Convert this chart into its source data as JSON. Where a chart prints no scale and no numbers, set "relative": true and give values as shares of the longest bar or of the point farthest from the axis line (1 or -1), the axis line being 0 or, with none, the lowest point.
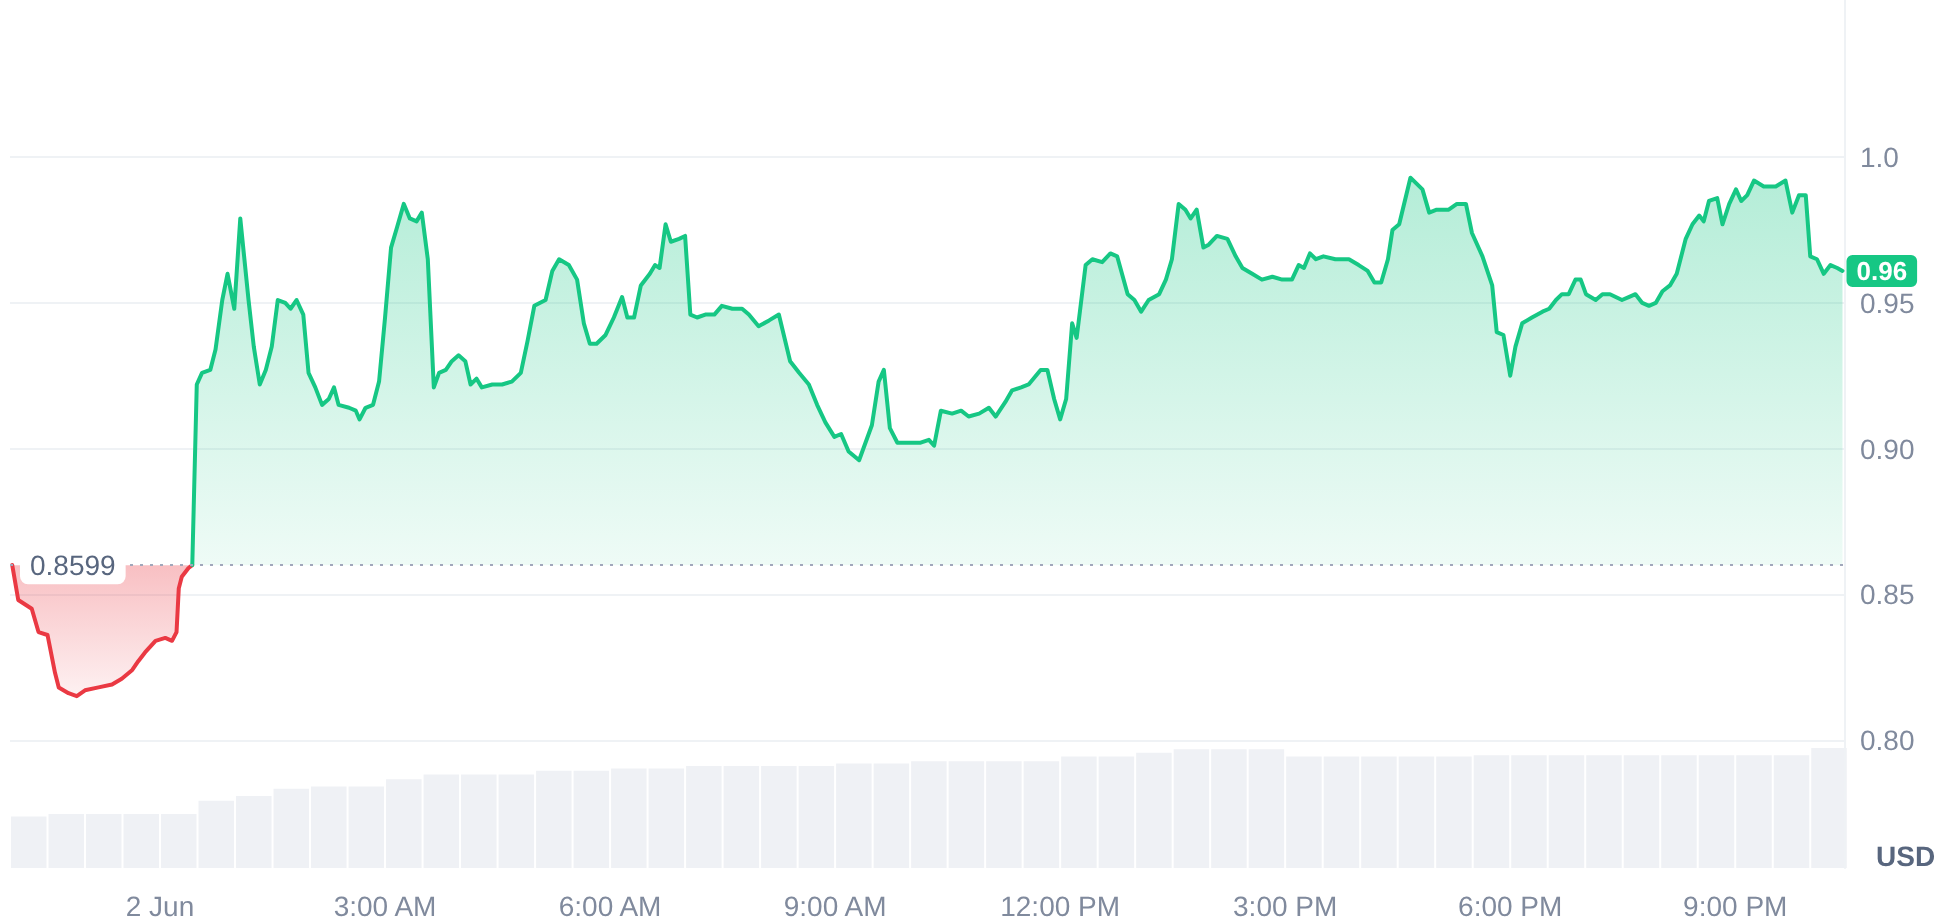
{
  "chart_data": [
    {
      "type": "area",
      "ylabel": "USD",
      "xlim": [
        -2,
        22.45
      ],
      "xticks": [
        {
          "value": 0,
          "label": "2 Jun"
        },
        {
          "value": 3,
          "label": "3:00 AM"
        },
        {
          "value": 6,
          "label": "6:00 AM"
        },
        {
          "value": 9,
          "label": "9:00 AM"
        },
        {
          "value": 12,
          "label": "12:00 PM"
        },
        {
          "value": 15,
          "label": "3:00 PM"
        },
        {
          "value": 18,
          "label": "6:00 PM"
        },
        {
          "value": 21,
          "label": "9:00 PM"
        }
      ],
      "ylim": [
        0.756,
        1.054
      ],
      "yticks": [
        {
          "value": 0.8,
          "label": "0.80"
        },
        0.85,
        {
          "value": 0.9,
          "label": "0.90"
        },
        0.95,
        {
          "value": 1,
          "label": "1.0"
        }
      ],
      "grid": "y",
      "series": [
        {
          "color": "#ea3943",
          "x": [
            -1.97,
            -1.89,
            -1.71,
            -1.62,
            -1.5,
            -1.4,
            -1.35,
            -1.22,
            -1.11,
            -1.0,
            -0.82,
            -0.64,
            -0.51,
            -0.37,
            -0.29,
            -0.2,
            -0.06,
            0.07,
            0.16,
            0.22,
            0.25,
            0.29,
            0.38,
            0.43
          ],
          "values": [
            0.86,
            0.848,
            0.845,
            0.837,
            0.836,
            0.823,
            0.818,
            0.816,
            0.815,
            0.817,
            0.818,
            0.819,
            0.821,
            0.824,
            0.827,
            0.83,
            0.834,
            0.835,
            0.834,
            0.837,
            0.852,
            0.856,
            0.859,
            0.86
          ]
        },
        {
          "color": "#16c784",
          "x": [
            0.43,
            0.49,
            0.56,
            0.67,
            0.74,
            0.83,
            0.9,
            0.99,
            1.07,
            1.18,
            1.25,
            1.33,
            1.41,
            1.49,
            1.57,
            1.67,
            1.74,
            1.82,
            1.91,
            1.98,
            2.07,
            2.16,
            2.25,
            2.32,
            2.38,
            2.52,
            2.61,
            2.66,
            2.74,
            2.84,
            2.92,
            3.0,
            3.08,
            3.16,
            3.25,
            3.33,
            3.42,
            3.49,
            3.57,
            3.65,
            3.72,
            3.81,
            3.89,
            3.98,
            4.07,
            4.14,
            4.22,
            4.29,
            4.43,
            4.56,
            4.69,
            4.81,
            4.9,
            4.99,
            5.14,
            5.23,
            5.32,
            5.45,
            5.56,
            5.65,
            5.73,
            5.82,
            5.94,
            6.05,
            6.16,
            6.23,
            6.32,
            6.41,
            6.53,
            6.6,
            6.66,
            6.74,
            6.81,
            6.92,
            7.0,
            7.07,
            7.16,
            7.27,
            7.39,
            7.49,
            7.63,
            7.76,
            7.85,
            7.98,
            8.12,
            8.25,
            8.4,
            8.52,
            8.65,
            8.76,
            8.87,
            8.99,
            9.08,
            9.18,
            9.32,
            9.49,
            9.58,
            9.65,
            9.73,
            9.83,
            9.98,
            10.14,
            10.25,
            10.32,
            10.41,
            10.56,
            10.68,
            10.78,
            10.92,
            11.05,
            11.14,
            11.27,
            11.36,
            11.48,
            11.58,
            11.74,
            11.83,
            11.92,
            12.0,
            12.08,
            12.16,
            12.22,
            12.34,
            12.43,
            12.56,
            12.67,
            12.76,
            12.9,
            12.99,
            13.08,
            13.18,
            13.32,
            13.41,
            13.49,
            13.58,
            13.67,
            13.74,
            13.82,
            13.91,
            13.98,
            14.09,
            14.23,
            14.34,
            14.43,
            14.56,
            14.69,
            14.83,
            14.96,
            15.09,
            15.18,
            15.25,
            15.33,
            15.41,
            15.51,
            15.67,
            15.85,
            15.98,
            16.1,
            16.19,
            16.28,
            16.37,
            16.43,
            16.52,
            16.67,
            16.83,
            16.92,
            17.02,
            17.18,
            17.29,
            17.41,
            17.49,
            17.63,
            17.76,
            17.82,
            17.91,
            18.0,
            18.07,
            18.16,
            18.29,
            18.43,
            18.52,
            18.61,
            18.69,
            18.78,
            18.87,
            18.94,
            19.01,
            19.14,
            19.23,
            19.33,
            19.49,
            19.58,
            19.67,
            19.76,
            19.85,
            19.94,
            20.03,
            20.13,
            20.22,
            20.34,
            20.43,
            20.52,
            20.58,
            20.65,
            20.76,
            20.83,
            20.92,
            21.01,
            21.08,
            21.16,
            21.25,
            21.38,
            21.54,
            21.67,
            21.76,
            21.85,
            21.94,
            22.0,
            22.09,
            22.18,
            22.27,
            22.36,
            22.43
          ],
          "values": [
            0.86,
            0.922,
            0.926,
            0.927,
            0.934,
            0.951,
            0.96,
            0.948,
            0.979,
            0.951,
            0.935,
            0.922,
            0.927,
            0.935,
            0.951,
            0.95,
            0.948,
            0.951,
            0.946,
            0.926,
            0.921,
            0.915,
            0.917,
            0.921,
            0.915,
            0.914,
            0.913,
            0.91,
            0.914,
            0.915,
            0.923,
            0.945,
            0.969,
            0.976,
            0.984,
            0.979,
            0.978,
            0.981,
            0.965,
            0.921,
            0.926,
            0.927,
            0.93,
            0.932,
            0.93,
            0.922,
            0.924,
            0.921,
            0.922,
            0.922,
            0.923,
            0.926,
            0.937,
            0.949,
            0.951,
            0.961,
            0.965,
            0.963,
            0.958,
            0.943,
            0.936,
            0.936,
            0.939,
            0.945,
            0.952,
            0.945,
            0.945,
            0.956,
            0.96,
            0.963,
            0.962,
            0.977,
            0.971,
            0.972,
            0.973,
            0.946,
            0.945,
            0.946,
            0.946,
            0.949,
            0.948,
            0.948,
            0.946,
            0.942,
            0.944,
            0.946,
            0.93,
            0.926,
            0.922,
            0.915,
            0.909,
            0.904,
            0.905,
            0.899,
            0.896,
            0.908,
            0.923,
            0.927,
            0.907,
            0.902,
            0.902,
            0.902,
            0.903,
            0.901,
            0.913,
            0.912,
            0.913,
            0.911,
            0.912,
            0.914,
            0.911,
            0.916,
            0.92,
            0.921,
            0.922,
            0.927,
            0.927,
            0.917,
            0.91,
            0.917,
            0.943,
            0.938,
            0.963,
            0.965,
            0.964,
            0.967,
            0.966,
            0.953,
            0.951,
            0.947,
            0.951,
            0.953,
            0.958,
            0.965,
            0.984,
            0.982,
            0.979,
            0.982,
            0.969,
            0.97,
            0.973,
            0.972,
            0.966,
            0.962,
            0.96,
            0.958,
            0.959,
            0.958,
            0.958,
            0.963,
            0.962,
            0.967,
            0.965,
            0.966,
            0.965,
            0.965,
            0.963,
            0.961,
            0.957,
            0.957,
            0.965,
            0.975,
            0.977,
            0.993,
            0.989,
            0.981,
            0.982,
            0.982,
            0.984,
            0.984,
            0.974,
            0.966,
            0.956,
            0.94,
            0.939,
            0.925,
            0.935,
            0.943,
            0.945,
            0.947,
            0.948,
            0.951,
            0.953,
            0.953,
            0.958,
            0.958,
            0.953,
            0.951,
            0.953,
            0.953,
            0.951,
            0.952,
            0.953,
            0.95,
            0.949,
            0.95,
            0.954,
            0.956,
            0.96,
            0.972,
            0.977,
            0.98,
            0.978,
            0.985,
            0.986,
            0.977,
            0.984,
            0.989,
            0.985,
            0.987,
            0.992,
            0.99,
            0.99,
            0.992,
            0.981,
            0.987,
            0.987,
            0.966,
            0.965,
            0.96,
            0.963,
            0.962,
            0.961
          ]
        }
      ],
      "ref_lines": [
        {
          "axis": "y",
          "value": 0.8599,
          "label": "0.8599",
          "line_style": "dotted",
          "color": "#a1a7bb"
        }
      ],
      "annotations": [
        {
          "text": "0.96",
          "x": 22.43,
          "y": 0.961
        }
      ]
    },
    {
      "type": "bar",
      "relative": true,
      "xlim": [
        -2,
        22.45
      ],
      "color": "#eff1f5",
      "x": [
        -1.75,
        -1.25,
        -0.75,
        -0.25,
        0.25,
        0.75,
        1.25,
        1.75,
        2.25,
        2.75,
        3.25,
        3.75,
        4.25,
        4.75,
        5.25,
        5.75,
        6.25,
        6.75,
        7.25,
        7.75,
        8.25,
        8.75,
        9.25,
        9.75,
        10.25,
        10.75,
        11.25,
        11.75,
        12.25,
        12.75,
        13.25,
        13.75,
        14.25,
        14.75,
        15.25,
        15.75,
        16.25,
        16.75,
        17.25,
        17.75,
        18.25,
        18.75,
        19.25,
        19.75,
        20.25,
        20.75,
        21.25,
        21.75,
        22.25
      ],
      "values": [
        0.43,
        0.45,
        0.45,
        0.45,
        0.45,
        0.56,
        0.6,
        0.66,
        0.68,
        0.68,
        0.74,
        0.78,
        0.78,
        0.78,
        0.81,
        0.81,
        0.83,
        0.83,
        0.85,
        0.85,
        0.85,
        0.85,
        0.87,
        0.87,
        0.89,
        0.89,
        0.89,
        0.89,
        0.93,
        0.93,
        0.96,
        0.99,
        0.99,
        0.99,
        0.93,
        0.93,
        0.93,
        0.93,
        0.93,
        0.94,
        0.94,
        0.94,
        0.94,
        0.94,
        0.94,
        0.94,
        0.94,
        0.94,
        1
      ]
    }
  ]
}
